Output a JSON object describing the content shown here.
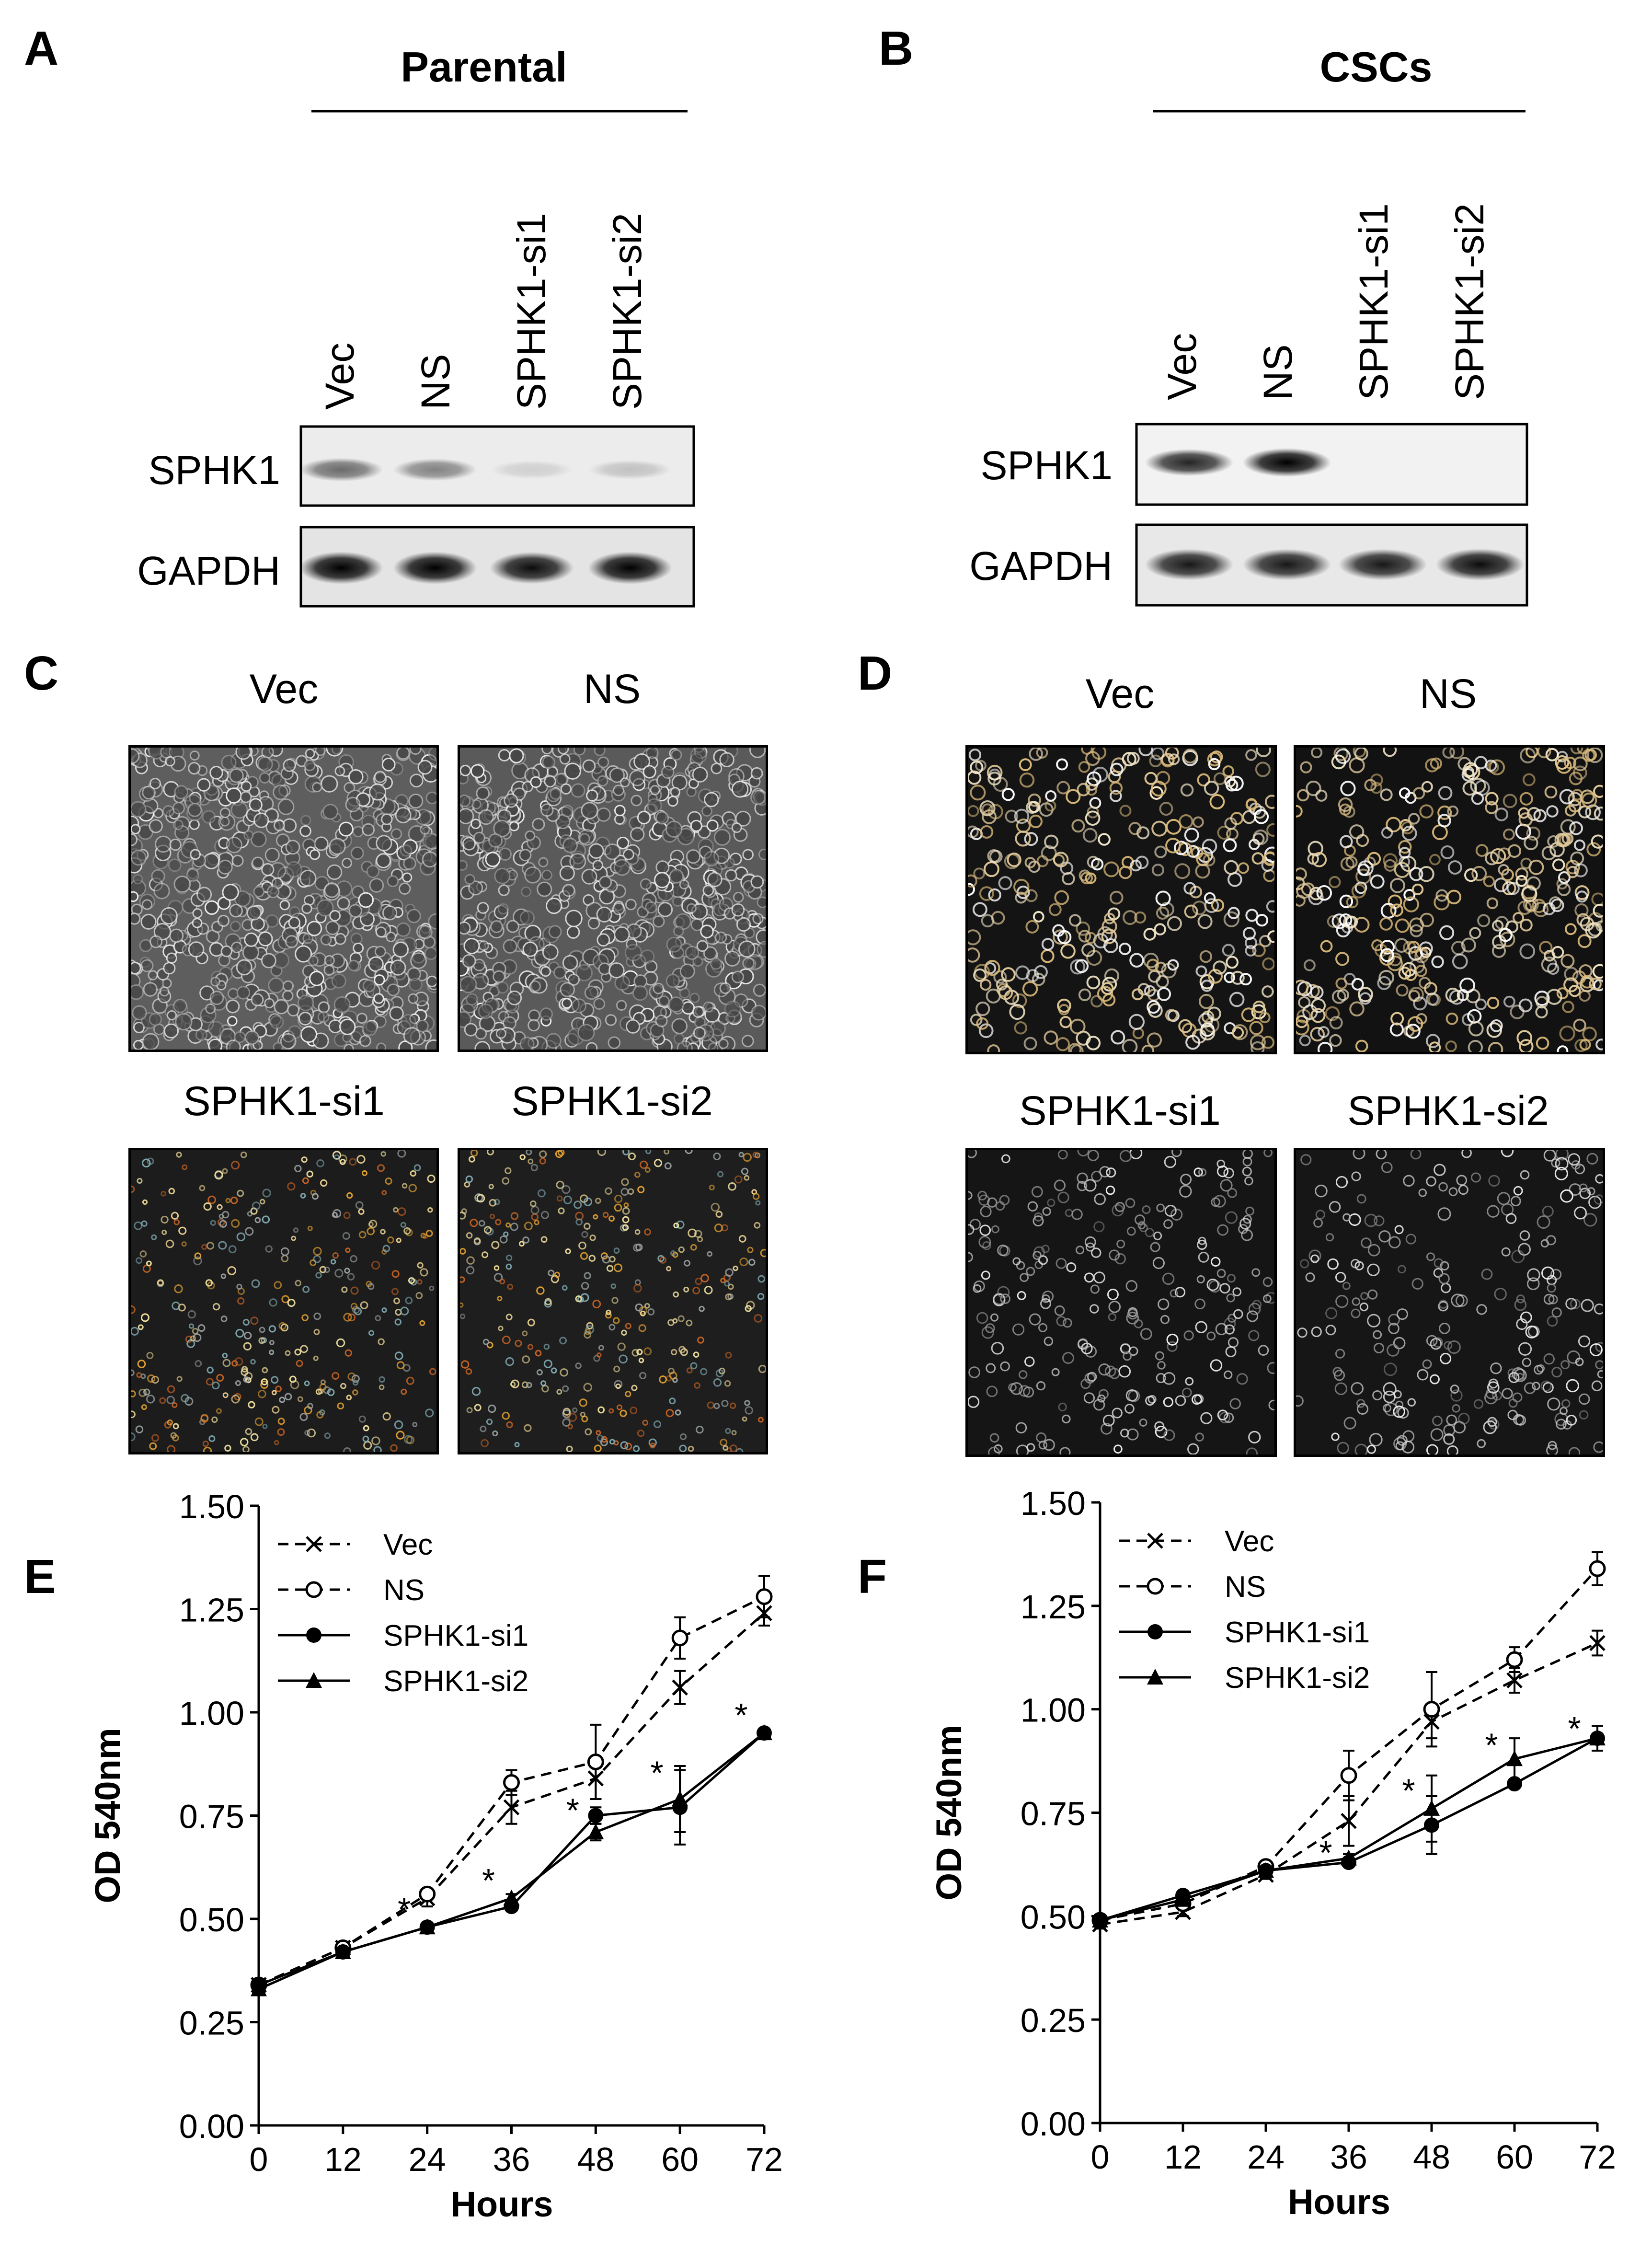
{
  "panels": {
    "A": {
      "letter": "A",
      "group_title": "Parental",
      "lanes": [
        "Vec",
        "NS",
        "SPHK1-si1",
        "SPHK1-si2"
      ],
      "blots": [
        "SPHK1",
        "GAPDH"
      ]
    },
    "B": {
      "letter": "B",
      "group_title": "CSCs",
      "lanes": [
        "Vec",
        "NS",
        "SPHK1-si1",
        "SPHK1-si2"
      ],
      "blots": [
        "SPHK1",
        "GAPDH"
      ]
    },
    "C": {
      "letter": "C",
      "images": [
        "Vec",
        "NS",
        "SPHK1-si1",
        "SPHK1-si2"
      ]
    },
    "D": {
      "letter": "D",
      "images": [
        "Vec",
        "NS",
        "SPHK1-si1",
        "SPHK1-si2"
      ]
    },
    "E": {
      "letter": "E"
    },
    "F": {
      "letter": "F"
    }
  },
  "band_intensity": {
    "A": {
      "SPHK1": [
        0.55,
        0.45,
        0.12,
        0.18
      ],
      "GAPDH": [
        1.0,
        1.0,
        0.95,
        1.0
      ]
    },
    "B": {
      "SPHK1": [
        0.85,
        1.0,
        0.0,
        0.0
      ],
      "GAPDH": [
        0.9,
        0.9,
        0.9,
        0.95
      ]
    }
  },
  "chart_data": [
    {
      "type": "line",
      "panel": "E",
      "xlabel": "Hours",
      "ylabel": "OD 540nm",
      "x": [
        0,
        12,
        24,
        36,
        48,
        60,
        72
      ],
      "xticks": [
        "0",
        "12",
        "24",
        "36",
        "48",
        "60",
        "72"
      ],
      "yticks": [
        "0.00",
        "0.25",
        "0.50",
        "0.75",
        "1.00",
        "1.25",
        "1.50"
      ],
      "xlim": [
        0,
        72
      ],
      "ylim": [
        0,
        1.5
      ],
      "legend_position": "top-left",
      "series": [
        {
          "name": "Vec",
          "style": "dashed",
          "marker": "x",
          "values": [
            0.34,
            0.43,
            0.55,
            0.77,
            0.84,
            1.06,
            1.24
          ],
          "errors": [
            0.01,
            0.01,
            0.02,
            0.04,
            0.05,
            0.04,
            0.03
          ]
        },
        {
          "name": "NS",
          "style": "dashed",
          "marker": "open-circle",
          "values": [
            0.34,
            0.43,
            0.56,
            0.83,
            0.88,
            1.18,
            1.28
          ],
          "errors": [
            0.01,
            0.01,
            0.01,
            0.03,
            0.09,
            0.05,
            0.05
          ]
        },
        {
          "name": "SPHK1-si1",
          "style": "solid",
          "marker": "filled-circle",
          "values": [
            0.34,
            0.42,
            0.48,
            0.53,
            0.75,
            0.77,
            0.95
          ],
          "errors": [
            0.01,
            0.01,
            0.01,
            0.01,
            0.02,
            0.09,
            0.01
          ]
        },
        {
          "name": "SPHK1-si2",
          "style": "solid",
          "marker": "filled-triangle",
          "values": [
            0.33,
            0.42,
            0.48,
            0.55,
            0.71,
            0.79,
            0.95
          ],
          "errors": [
            0.01,
            0.01,
            0.01,
            0.01,
            0.02,
            0.08,
            0.01
          ]
        }
      ],
      "annotations": [
        {
          "text": "*",
          "x": 24,
          "y": 0.53
        },
        {
          "text": "*",
          "x": 36,
          "y": 0.6
        },
        {
          "text": "*",
          "x": 48,
          "y": 0.77
        },
        {
          "text": "*",
          "x": 60,
          "y": 0.86
        },
        {
          "text": "*",
          "x": 72,
          "y": 1.0
        }
      ]
    },
    {
      "type": "line",
      "panel": "F",
      "xlabel": "Hours",
      "ylabel": "OD 540nm",
      "x": [
        0,
        12,
        24,
        36,
        48,
        60,
        72
      ],
      "xticks": [
        "0",
        "12",
        "24",
        "36",
        "48",
        "60",
        "72"
      ],
      "yticks": [
        "0.00",
        "0.25",
        "0.50",
        "0.75",
        "1.00",
        "1.25",
        "1.50"
      ],
      "xlim": [
        0,
        72
      ],
      "ylim": [
        0,
        1.5
      ],
      "legend_position": "top-left",
      "series": [
        {
          "name": "Vec",
          "style": "dashed",
          "marker": "x",
          "values": [
            0.48,
            0.51,
            0.6,
            0.73,
            0.97,
            1.07,
            1.16
          ],
          "errors": [
            0.01,
            0.01,
            0.01,
            0.06,
            0.04,
            0.03,
            0.03
          ]
        },
        {
          "name": "NS",
          "style": "dashed",
          "marker": "open-circle",
          "values": [
            0.49,
            0.53,
            0.62,
            0.84,
            1.0,
            1.12,
            1.34
          ],
          "errors": [
            0.01,
            0.01,
            0.01,
            0.06,
            0.09,
            0.03,
            0.04
          ]
        },
        {
          "name": "SPHK1-si1",
          "style": "solid",
          "marker": "filled-circle",
          "values": [
            0.49,
            0.55,
            0.61,
            0.63,
            0.72,
            0.82,
            0.93
          ],
          "errors": [
            0.01,
            0.01,
            0.01,
            0.01,
            0.07,
            0.01,
            0.03
          ]
        },
        {
          "name": "SPHK1-si2",
          "style": "solid",
          "marker": "filled-triangle",
          "values": [
            0.49,
            0.54,
            0.61,
            0.64,
            0.76,
            0.88,
            0.93
          ],
          "errors": [
            0.01,
            0.01,
            0.01,
            0.01,
            0.08,
            0.05,
            0.03
          ]
        }
      ],
      "annotations": [
        {
          "text": "*",
          "x": 36,
          "y": 0.66
        },
        {
          "text": "*",
          "x": 48,
          "y": 0.81
        },
        {
          "text": "*",
          "x": 60,
          "y": 0.92
        },
        {
          "text": "*",
          "x": 72,
          "y": 0.96
        }
      ]
    }
  ]
}
